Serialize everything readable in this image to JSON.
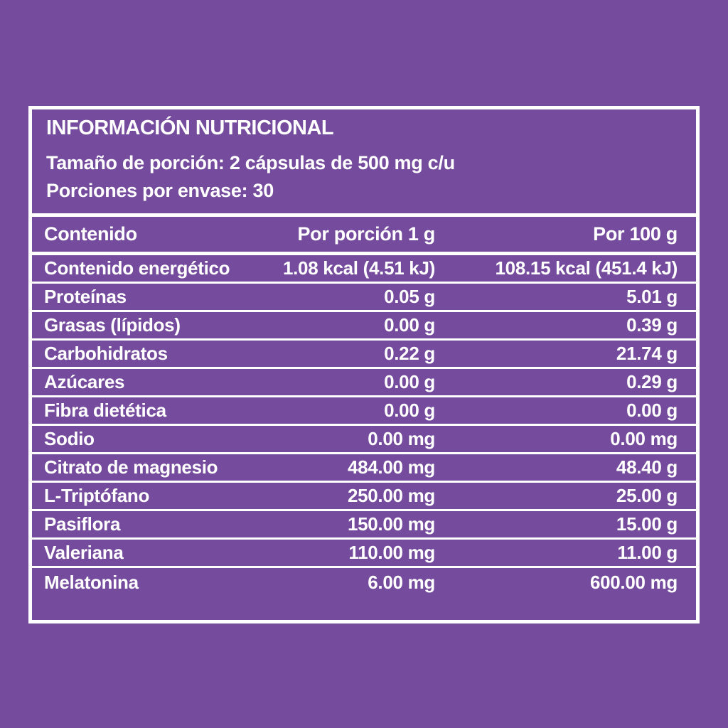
{
  "colors": {
    "background": "#754B9D",
    "panel_border": "#FFFFFF",
    "divider": "#FFFFFF",
    "text": "#FFFFFF"
  },
  "label": {
    "title": "INFORMACIÓN NUTRICIONAL",
    "serving_size": "Tamaño de porción: 2 cápsulas de 500 mg c/u",
    "servings_per_container": "Porciones por envase: 30"
  },
  "table": {
    "columns": [
      "Contenido",
      "Por porción 1 g",
      "Por 100 g"
    ],
    "rows": [
      {
        "name": "Contenido energético",
        "per_serving": "1.08 kcal (4.51 kJ)",
        "per_100g": "108.15 kcal (451.4 kJ)"
      },
      {
        "name": "Proteínas",
        "per_serving": "0.05 g",
        "per_100g": "5.01 g"
      },
      {
        "name": "Grasas (lípidos)",
        "per_serving": "0.00 g",
        "per_100g": "0.39 g"
      },
      {
        "name": "Carbohidratos",
        "per_serving": "0.22 g",
        "per_100g": "21.74 g"
      },
      {
        "name": "Azúcares",
        "per_serving": "0.00 g",
        "per_100g": "0.29 g"
      },
      {
        "name": "Fibra dietética",
        "per_serving": "0.00 g",
        "per_100g": "0.00 g"
      },
      {
        "name": "Sodio",
        "per_serving": "0.00 mg",
        "per_100g": "0.00 mg"
      },
      {
        "name": "Citrato de magnesio",
        "per_serving": "484.00 mg",
        "per_100g": "48.40 g"
      },
      {
        "name": "L-Triptófano",
        "per_serving": "250.00 mg",
        "per_100g": "25.00 g"
      },
      {
        "name": "Pasiflora",
        "per_serving": "150.00 mg",
        "per_100g": "15.00 g"
      },
      {
        "name": "Valeriana",
        "per_serving": "110.00 mg",
        "per_100g": "11.00 g"
      },
      {
        "name": "Melatonina",
        "per_serving": "6.00 mg",
        "per_100g": "600.00 mg"
      }
    ]
  }
}
